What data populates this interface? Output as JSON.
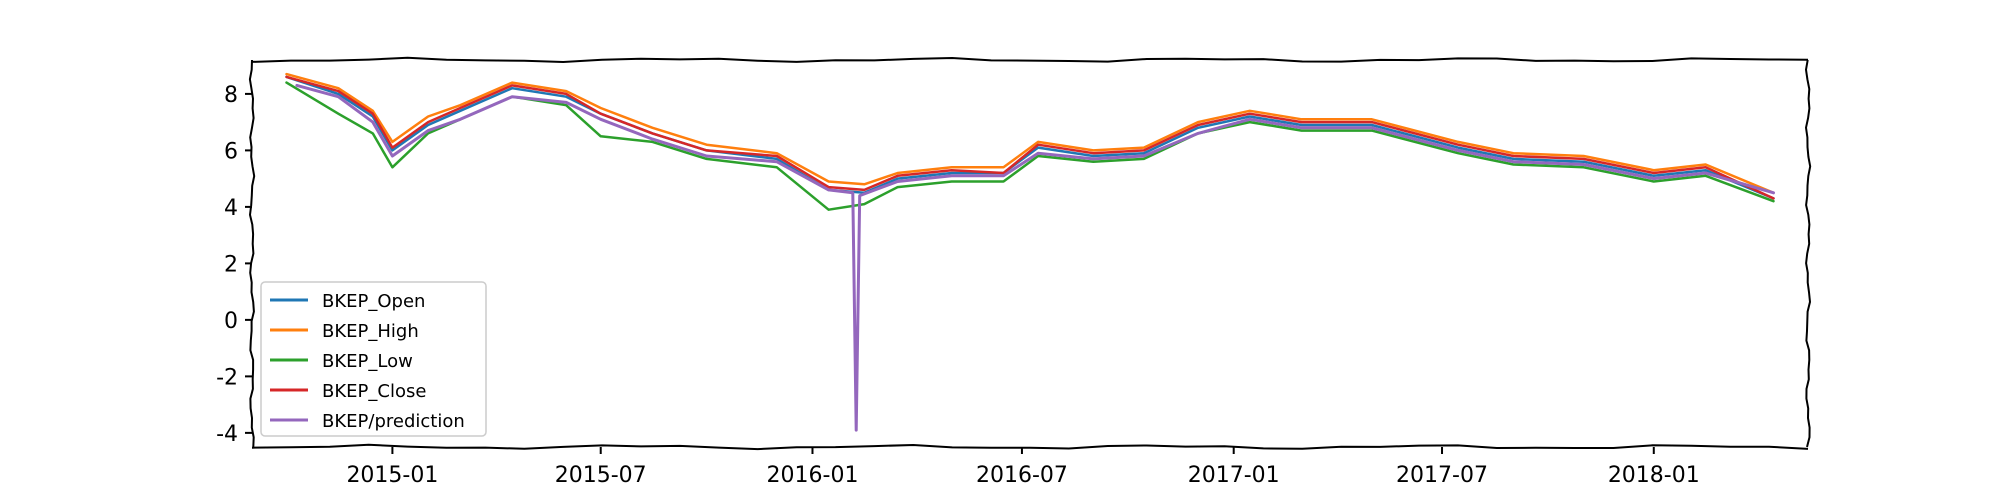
{
  "chart_data": {
    "type": "line",
    "title": "",
    "xlabel": "",
    "ylabel": "",
    "xlim": [
      "2014-09-01",
      "2018-05-15"
    ],
    "ylim": [
      -4.5,
      9.2
    ],
    "x_ticks": [
      "2015-01",
      "2015-07",
      "2016-01",
      "2016-07",
      "2017-01",
      "2017-07",
      "2018-01"
    ],
    "y_ticks": [
      8,
      6,
      4,
      2,
      0,
      -2,
      -4
    ],
    "grid": false,
    "legend_position": "lower-left",
    "series": [
      {
        "name": "BKEP_Open",
        "color": "#1f77b4",
        "points": [
          [
            "2014-10-01",
            8.6
          ],
          [
            "2014-11-15",
            8.0
          ],
          [
            "2014-12-15",
            7.2
          ],
          [
            "2015-01-01",
            6.0
          ],
          [
            "2015-02-01",
            6.9
          ],
          [
            "2015-03-01",
            7.4
          ],
          [
            "2015-04-15",
            8.2
          ],
          [
            "2015-06-01",
            7.9
          ],
          [
            "2015-07-01",
            7.3
          ],
          [
            "2015-08-15",
            6.6
          ],
          [
            "2015-10-01",
            6.0
          ],
          [
            "2015-12-01",
            5.7
          ],
          [
            "2016-01-15",
            4.6
          ],
          [
            "2016-02-15",
            4.5
          ],
          [
            "2016-03-15",
            5.0
          ],
          [
            "2016-05-01",
            5.2
          ],
          [
            "2016-06-15",
            5.2
          ],
          [
            "2016-07-15",
            6.1
          ],
          [
            "2016-09-01",
            5.8
          ],
          [
            "2016-10-15",
            5.9
          ],
          [
            "2016-12-01",
            6.8
          ],
          [
            "2017-01-15",
            7.2
          ],
          [
            "2017-03-01",
            6.9
          ],
          [
            "2017-05-01",
            6.9
          ],
          [
            "2017-07-15",
            6.1
          ],
          [
            "2017-09-01",
            5.7
          ],
          [
            "2017-11-01",
            5.6
          ],
          [
            "2018-01-01",
            5.1
          ],
          [
            "2018-02-15",
            5.3
          ],
          [
            "2018-04-15",
            4.3
          ]
        ]
      },
      {
        "name": "BKEP_High",
        "color": "#ff7f0e",
        "points": [
          [
            "2014-10-01",
            8.7
          ],
          [
            "2014-11-15",
            8.2
          ],
          [
            "2014-12-15",
            7.4
          ],
          [
            "2015-01-01",
            6.3
          ],
          [
            "2015-02-01",
            7.2
          ],
          [
            "2015-03-01",
            7.6
          ],
          [
            "2015-04-15",
            8.4
          ],
          [
            "2015-06-01",
            8.1
          ],
          [
            "2015-07-01",
            7.5
          ],
          [
            "2015-08-15",
            6.8
          ],
          [
            "2015-10-01",
            6.2
          ],
          [
            "2015-12-01",
            5.9
          ],
          [
            "2016-01-15",
            4.9
          ],
          [
            "2016-02-15",
            4.8
          ],
          [
            "2016-03-15",
            5.2
          ],
          [
            "2016-05-01",
            5.4
          ],
          [
            "2016-06-15",
            5.4
          ],
          [
            "2016-07-15",
            6.3
          ],
          [
            "2016-09-01",
            6.0
          ],
          [
            "2016-10-15",
            6.1
          ],
          [
            "2016-12-01",
            7.0
          ],
          [
            "2017-01-15",
            7.4
          ],
          [
            "2017-03-01",
            7.1
          ],
          [
            "2017-05-01",
            7.1
          ],
          [
            "2017-07-15",
            6.3
          ],
          [
            "2017-09-01",
            5.9
          ],
          [
            "2017-11-01",
            5.8
          ],
          [
            "2018-01-01",
            5.3
          ],
          [
            "2018-02-15",
            5.5
          ],
          [
            "2018-04-15",
            4.5
          ]
        ]
      },
      {
        "name": "BKEP_Low",
        "color": "#2ca02c",
        "points": [
          [
            "2014-10-01",
            8.4
          ],
          [
            "2014-11-15",
            7.3
          ],
          [
            "2014-12-15",
            6.6
          ],
          [
            "2015-01-01",
            5.4
          ],
          [
            "2015-02-01",
            6.6
          ],
          [
            "2015-03-01",
            7.1
          ],
          [
            "2015-04-15",
            7.9
          ],
          [
            "2015-06-01",
            7.6
          ],
          [
            "2015-07-01",
            6.5
          ],
          [
            "2015-08-15",
            6.3
          ],
          [
            "2015-10-01",
            5.7
          ],
          [
            "2015-12-01",
            5.4
          ],
          [
            "2016-01-15",
            3.9
          ],
          [
            "2016-02-15",
            4.1
          ],
          [
            "2016-03-15",
            4.7
          ],
          [
            "2016-05-01",
            4.9
          ],
          [
            "2016-06-15",
            4.9
          ],
          [
            "2016-07-15",
            5.8
          ],
          [
            "2016-09-01",
            5.6
          ],
          [
            "2016-10-15",
            5.7
          ],
          [
            "2016-12-01",
            6.6
          ],
          [
            "2017-01-15",
            7.0
          ],
          [
            "2017-03-01",
            6.7
          ],
          [
            "2017-05-01",
            6.7
          ],
          [
            "2017-07-15",
            5.9
          ],
          [
            "2017-09-01",
            5.5
          ],
          [
            "2017-11-01",
            5.4
          ],
          [
            "2018-01-01",
            4.9
          ],
          [
            "2018-02-15",
            5.1
          ],
          [
            "2018-04-15",
            4.2
          ]
        ]
      },
      {
        "name": "BKEP_Close",
        "color": "#d62728",
        "points": [
          [
            "2014-10-01",
            8.6
          ],
          [
            "2014-11-15",
            8.1
          ],
          [
            "2014-12-15",
            7.3
          ],
          [
            "2015-01-01",
            6.1
          ],
          [
            "2015-02-01",
            7.0
          ],
          [
            "2015-03-01",
            7.5
          ],
          [
            "2015-04-15",
            8.3
          ],
          [
            "2015-06-01",
            8.0
          ],
          [
            "2015-07-01",
            7.3
          ],
          [
            "2015-08-15",
            6.6
          ],
          [
            "2015-10-01",
            6.0
          ],
          [
            "2015-12-01",
            5.8
          ],
          [
            "2016-01-15",
            4.7
          ],
          [
            "2016-02-15",
            4.6
          ],
          [
            "2016-03-15",
            5.1
          ],
          [
            "2016-05-01",
            5.3
          ],
          [
            "2016-06-15",
            5.2
          ],
          [
            "2016-07-15",
            6.2
          ],
          [
            "2016-09-01",
            5.9
          ],
          [
            "2016-10-15",
            6.0
          ],
          [
            "2016-12-01",
            6.9
          ],
          [
            "2017-01-15",
            7.3
          ],
          [
            "2017-03-01",
            7.0
          ],
          [
            "2017-05-01",
            7.0
          ],
          [
            "2017-07-15",
            6.2
          ],
          [
            "2017-09-01",
            5.8
          ],
          [
            "2017-11-01",
            5.7
          ],
          [
            "2018-01-01",
            5.2
          ],
          [
            "2018-02-15",
            5.4
          ],
          [
            "2018-04-15",
            4.3
          ]
        ]
      },
      {
        "name": "BKEP/prediction",
        "color": "#9467bd",
        "points": [
          [
            "2014-10-10",
            8.3
          ],
          [
            "2014-11-15",
            7.9
          ],
          [
            "2014-12-15",
            7.0
          ],
          [
            "2015-01-01",
            5.8
          ],
          [
            "2015-02-01",
            6.7
          ],
          [
            "2015-03-01",
            7.1
          ],
          [
            "2015-04-15",
            7.9
          ],
          [
            "2015-06-01",
            7.7
          ],
          [
            "2015-07-01",
            7.1
          ],
          [
            "2015-08-15",
            6.4
          ],
          [
            "2015-10-01",
            5.8
          ],
          [
            "2015-12-01",
            5.6
          ],
          [
            "2016-01-15",
            4.6
          ],
          [
            "2016-02-05",
            4.5
          ],
          [
            "2016-02-08",
            -3.9
          ],
          [
            "2016-02-11",
            4.4
          ],
          [
            "2016-03-15",
            4.9
          ],
          [
            "2016-05-01",
            5.1
          ],
          [
            "2016-06-15",
            5.1
          ],
          [
            "2016-07-15",
            5.9
          ],
          [
            "2016-09-01",
            5.7
          ],
          [
            "2016-10-15",
            5.8
          ],
          [
            "2016-12-01",
            6.6
          ],
          [
            "2017-01-15",
            7.1
          ],
          [
            "2017-03-01",
            6.8
          ],
          [
            "2017-05-01",
            6.8
          ],
          [
            "2017-07-15",
            6.0
          ],
          [
            "2017-09-01",
            5.6
          ],
          [
            "2017-11-01",
            5.5
          ],
          [
            "2018-01-01",
            5.0
          ],
          [
            "2018-02-15",
            5.2
          ],
          [
            "2018-04-15",
            4.5
          ]
        ]
      }
    ]
  }
}
